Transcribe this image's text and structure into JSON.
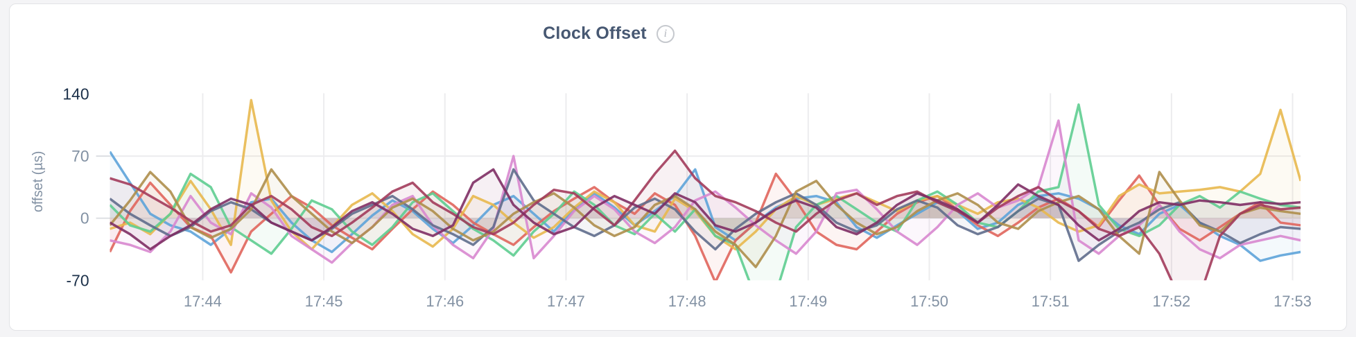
{
  "page": {
    "background": "#f4f4f6",
    "card_background": "#ffffff",
    "card_border": "#e2e3e6"
  },
  "header": {
    "title": "Clock Offset",
    "info_icon_glyph": "i"
  },
  "axis_colors": {
    "grid": "#ececee",
    "tick_stub": "#dcdee2",
    "tick": "#8291a3",
    "tick_emphasis": "#1b3049",
    "axis_label": "#8291a3"
  },
  "chart_data": {
    "type": "line",
    "title": "Clock Offset",
    "xlabel": "",
    "ylabel": "offset (µs)",
    "ylim": [
      -70,
      140
    ],
    "grid": true,
    "legend": "none",
    "y_ticks": [
      {
        "label": "140",
        "value": 140,
        "emphasis": true
      },
      {
        "label": "70",
        "value": 70,
        "emphasis": false
      },
      {
        "label": "0",
        "value": 0,
        "emphasis": false
      },
      {
        "label": "-70",
        "value": -70,
        "emphasis": true
      }
    ],
    "x_ticks": [
      "17:44",
      "17:45",
      "17:46",
      "17:47",
      "17:48",
      "17:49",
      "17:50",
      "17:51",
      "17:52",
      "17:53"
    ],
    "points_interval_seconds": 10,
    "series": [
      {
        "name": "blue",
        "color": "#5DA3D9",
        "values": [
          75,
          40,
          5,
          -8,
          -15,
          -30,
          -12,
          18,
          22,
          -5,
          -25,
          -38,
          -18,
          3,
          20,
          8,
          -12,
          -28,
          -8,
          15,
          25,
          5,
          -15,
          10,
          28,
          12,
          -8,
          8,
          25,
          55,
          -10,
          -25,
          -5,
          12,
          22,
          25,
          18,
          -10,
          -22,
          -8,
          5,
          18,
          8,
          -12,
          -5,
          15,
          25,
          28,
          22,
          10,
          -8,
          -18,
          5,
          15,
          -5,
          -20,
          -30,
          -48,
          -42,
          -38
        ]
      },
      {
        "name": "salmon",
        "color": "#E0655C",
        "values": [
          -38,
          8,
          40,
          15,
          -10,
          -20,
          -61,
          -15,
          5,
          25,
          12,
          -8,
          -22,
          -35,
          -12,
          10,
          30,
          15,
          -5,
          -18,
          -30,
          -10,
          8,
          22,
          35,
          18,
          5,
          28,
          15,
          -20,
          -72,
          -25,
          -5,
          50,
          20,
          -15,
          -30,
          -35,
          -15,
          5,
          18,
          25,
          10,
          -8,
          -20,
          -5,
          12,
          22,
          8,
          -10,
          20,
          48,
          15,
          -12,
          -25,
          -10,
          5,
          18,
          -5,
          -8
        ]
      },
      {
        "name": "gold",
        "color": "#E8B84E",
        "values": [
          -12,
          -5,
          -18,
          5,
          42,
          10,
          -30,
          133,
          20,
          -15,
          -35,
          -10,
          15,
          28,
          8,
          -18,
          -32,
          -12,
          25,
          15,
          -5,
          -22,
          -10,
          12,
          30,
          18,
          -8,
          -15,
          22,
          8,
          -20,
          -35,
          -15,
          10,
          25,
          15,
          22,
          28,
          18,
          8,
          20,
          25,
          15,
          5,
          18,
          22,
          12,
          -5,
          -15,
          -8,
          25,
          38,
          28,
          30,
          32,
          35,
          30,
          50,
          122,
          42
        ]
      },
      {
        "name": "green",
        "color": "#5ECD90",
        "values": [
          15,
          -8,
          -15,
          5,
          50,
          35,
          -10,
          -25,
          -40,
          -12,
          20,
          10,
          -15,
          -30,
          -10,
          18,
          28,
          8,
          -12,
          -25,
          -42,
          -15,
          5,
          30,
          15,
          -8,
          -18,
          5,
          -15,
          10,
          -20,
          -30,
          -90,
          -85,
          -10,
          15,
          25,
          10,
          -5,
          -15,
          20,
          30,
          15,
          -5,
          -10,
          8,
          30,
          35,
          128,
          15,
          -12,
          -20,
          -8,
          15,
          25,
          12,
          30,
          22,
          15,
          12
        ]
      },
      {
        "name": "orchid",
        "color": "#D887CF",
        "values": [
          -25,
          -30,
          -38,
          -15,
          25,
          -5,
          -18,
          28,
          12,
          -20,
          -35,
          -50,
          -28,
          -10,
          15,
          25,
          -8,
          -30,
          -45,
          -12,
          70,
          -45,
          -20,
          8,
          25,
          10,
          -15,
          -28,
          -10,
          20,
          30,
          12,
          -8,
          -25,
          -40,
          -15,
          28,
          32,
          10,
          -15,
          -30,
          -10,
          15,
          28,
          12,
          20,
          35,
          110,
          -25,
          -40,
          -20,
          -8,
          15,
          -15,
          -35,
          -45,
          -30,
          -25,
          -20,
          -25
        ]
      },
      {
        "name": "slate",
        "color": "#5F6D8C",
        "values": [
          22,
          5,
          -8,
          -20,
          -10,
          8,
          18,
          10,
          -5,
          -15,
          -25,
          -12,
          5,
          15,
          25,
          10,
          -8,
          -18,
          -30,
          -10,
          55,
          20,
          5,
          -10,
          -20,
          -8,
          12,
          22,
          10,
          -15,
          -35,
          -12,
          5,
          18,
          28,
          15,
          -5,
          -15,
          -8,
          10,
          20,
          12,
          -8,
          -18,
          -10,
          8,
          22,
          15,
          -48,
          -30,
          -15,
          -5,
          10,
          18,
          -5,
          -15,
          -28,
          -18,
          -10,
          -12
        ]
      },
      {
        "name": "olive",
        "color": "#AE8E4B",
        "values": [
          -8,
          20,
          52,
          30,
          -10,
          -22,
          -12,
          10,
          55,
          25,
          5,
          -15,
          -28,
          -10,
          12,
          22,
          8,
          -12,
          -25,
          -15,
          5,
          18,
          28,
          12,
          -8,
          -20,
          -10,
          15,
          25,
          10,
          -15,
          -30,
          -55,
          -20,
          30,
          42,
          15,
          -5,
          -18,
          -10,
          8,
          20,
          28,
          15,
          -5,
          -12,
          8,
          18,
          25,
          10,
          -20,
          -40,
          52,
          20,
          -8,
          -15,
          5,
          12,
          8,
          5
        ]
      },
      {
        "name": "maroon",
        "color": "#A23B5B",
        "values": [
          45,
          38,
          25,
          12,
          -3,
          -15,
          -8,
          15,
          25,
          10,
          -10,
          -20,
          -5,
          12,
          30,
          40,
          18,
          5,
          -10,
          -18,
          -5,
          15,
          32,
          28,
          10,
          -8,
          20,
          50,
          76,
          45,
          25,
          18,
          8,
          -5,
          -15,
          5,
          20,
          28,
          15,
          25,
          30,
          18,
          8,
          -5,
          12,
          25,
          35,
          20,
          8,
          -12,
          -20,
          -10,
          -40,
          -90,
          -88,
          -20,
          5,
          15,
          10,
          12
        ]
      },
      {
        "name": "plum",
        "color": "#7E2D64",
        "values": [
          -5,
          -18,
          -35,
          -20,
          -8,
          10,
          22,
          15,
          -5,
          -15,
          -25,
          -10,
          8,
          18,
          5,
          -12,
          -20,
          -8,
          40,
          55,
          15,
          -5,
          -18,
          -10,
          12,
          25,
          15,
          5,
          28,
          18,
          -8,
          -15,
          -5,
          10,
          20,
          12,
          -10,
          -18,
          -5,
          15,
          28,
          20,
          10,
          -5,
          15,
          38,
          25,
          15,
          -8,
          -25,
          -12,
          8,
          18,
          15,
          20,
          18,
          15,
          18,
          16,
          18
        ]
      }
    ]
  }
}
